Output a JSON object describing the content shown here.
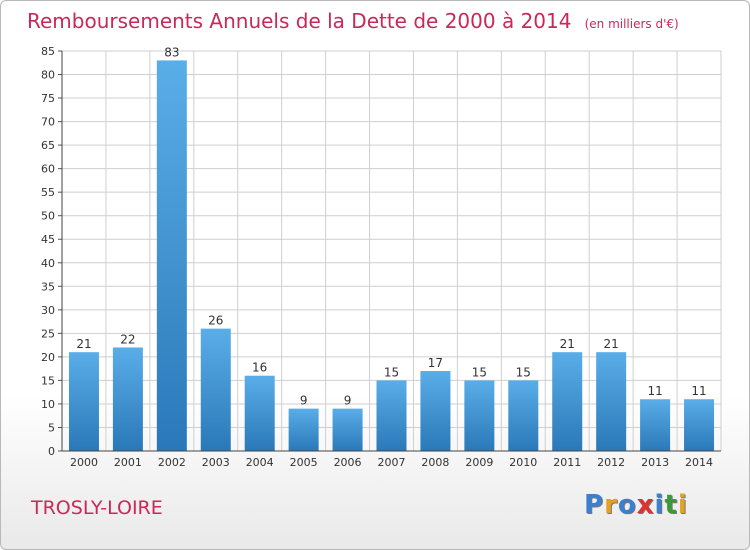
{
  "title": "Remboursements Annuels de la Dette de 2000 à 2014",
  "unit": "(en milliers d'€)",
  "location": "TROSLY-LOIRE",
  "logo": {
    "text": "Proxiti",
    "letters": [
      "P",
      "r",
      "o",
      "x",
      "i",
      "t",
      "i"
    ],
    "colors": [
      "#3a7fd0",
      "#e8a020",
      "#3a7fd0",
      "#e03030",
      "#3a7fd0",
      "#3a9a3a",
      "#e8a020"
    ]
  },
  "colors": {
    "title": "#c8285a",
    "bar_top": "#5aaee8",
    "bar_bottom": "#2a78b8",
    "grid": "#cfcfcf"
  },
  "chart_data": {
    "type": "bar",
    "categories": [
      "2000",
      "2001",
      "2002",
      "2003",
      "2004",
      "2005",
      "2006",
      "2007",
      "2008",
      "2009",
      "2010",
      "2011",
      "2012",
      "2013",
      "2014"
    ],
    "values": [
      21,
      22,
      83,
      26,
      16,
      9,
      9,
      15,
      17,
      15,
      15,
      21,
      21,
      11,
      11
    ],
    "ylim": [
      0,
      85
    ],
    "yticks": [
      0,
      5,
      10,
      15,
      20,
      25,
      30,
      35,
      40,
      45,
      50,
      55,
      60,
      65,
      70,
      75,
      80,
      85
    ],
    "grid": true,
    "data_labels": true
  }
}
